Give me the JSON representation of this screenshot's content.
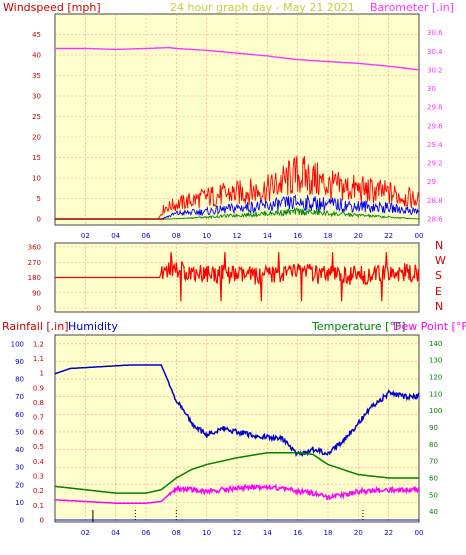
{
  "header": {
    "left": "Windspeed [mph]",
    "center": "24 hour graph day - May 21 2021",
    "right": "Barometer [.in]"
  },
  "bottom_header": {
    "rain": "Rainfall [.in]",
    "humidity": "Humidity",
    "temp": "Temperature [°F]",
    "dew": "Dew Point [°F]"
  },
  "directions": [
    "N",
    "W",
    "S",
    "E",
    "N"
  ],
  "colors": {
    "plot_bg": "#ffffcc",
    "grid": "#ff9999",
    "wind_gust": "#ff0000",
    "wind_avg": "#0000ff",
    "wind_lull": "#008800",
    "barometer": "#ff33ff",
    "direction": "#ff0000",
    "humidity": "#0000cc",
    "temperature": "#008000",
    "dewpoint": "#ff00ff",
    "rain": "#0000ff"
  },
  "chart_data": [
    {
      "type": "line",
      "name": "wind_barometer",
      "x_ticks": [
        "02",
        "04",
        "06",
        "08",
        "10",
        "12",
        "14",
        "16",
        "18",
        "20",
        "22",
        "00"
      ],
      "ylabel_left": "Windspeed [mph]",
      "ylabel_right": "Barometer [.in]",
      "yticks_left": [
        0,
        5,
        10,
        15,
        20,
        25,
        30,
        35,
        40,
        45
      ],
      "yticks_right": [
        28.6,
        28.8,
        29,
        29.2,
        29.4,
        29.6,
        29.8,
        30,
        30.2,
        30.4,
        30.6
      ],
      "ylim_left": [
        0,
        50
      ],
      "ylim_right": [
        28.6,
        30.8
      ],
      "series": [
        {
          "name": "Barometer",
          "axis": "right",
          "x": [
            0,
            2,
            4,
            6,
            7.5,
            8,
            10,
            12,
            14,
            16,
            18,
            20,
            22,
            24
          ],
          "values": [
            30.43,
            30.43,
            30.42,
            30.43,
            30.44,
            30.43,
            30.41,
            30.38,
            30.35,
            30.31,
            30.29,
            30.27,
            30.24,
            30.2
          ]
        },
        {
          "name": "Wind Gust",
          "axis": "left",
          "x": [
            0,
            6.8,
            7.2,
            8,
            10,
            12,
            14,
            16,
            17,
            18,
            20,
            22,
            24
          ],
          "values": [
            0,
            0,
            3,
            4,
            6,
            7,
            8,
            12,
            11,
            9,
            8,
            7,
            5
          ]
        },
        {
          "name": "Wind Average",
          "axis": "left",
          "x": [
            0,
            7,
            8,
            10,
            12,
            14,
            16,
            18,
            20,
            22,
            24
          ],
          "values": [
            0,
            0,
            1.5,
            2,
            3,
            3.5,
            4.5,
            4,
            3.5,
            3,
            2
          ]
        },
        {
          "name": "Wind Lull",
          "axis": "left",
          "x": [
            0,
            7.5,
            10,
            12,
            14,
            16,
            18,
            20,
            22,
            24
          ],
          "values": [
            0,
            0,
            0.5,
            1,
            1.5,
            2,
            1.5,
            1,
            0.5,
            0
          ]
        }
      ]
    },
    {
      "type": "line",
      "name": "wind_direction",
      "yticks_left": [
        0,
        90,
        180,
        270,
        360
      ],
      "ylim": [
        0,
        360
      ],
      "series": [
        {
          "name": "Direction",
          "x": [
            0,
            6.9,
            7.0,
            7.5,
            9,
            11,
            13,
            15,
            16,
            16.5,
            17,
            19,
            21,
            23,
            24
          ],
          "values": [
            180,
            180,
            210,
            240,
            210,
            200,
            190,
            200,
            220,
            230,
            195,
            190,
            195,
            210,
            200
          ]
        }
      ]
    },
    {
      "type": "line",
      "name": "temperature_humidity_rain",
      "ylabel_left_outer": "Rainfall [.in]",
      "ylabel_left_inner": "Humidity",
      "ylabel_right_a": "Temperature [°F]",
      "ylabel_right_b": "Dew Point [°F]",
      "yticks_rain": [
        0,
        0.1,
        0.2,
        0.3,
        0.4,
        0.5,
        0.6,
        0.7,
        0.8,
        0.9,
        1,
        1.1,
        1.2
      ],
      "yticks_humidity": [
        0,
        10,
        20,
        30,
        40,
        50,
        60,
        70,
        80,
        90,
        100
      ],
      "yticks_temp": [
        40,
        50,
        60,
        70,
        80,
        90,
        100,
        110,
        120,
        130,
        140
      ],
      "ylim_humidity": [
        0,
        105
      ],
      "ylim_temp": [
        35,
        145
      ],
      "series": [
        {
          "name": "Humidity",
          "axis": "humidity",
          "x": [
            0,
            1,
            3,
            5,
            6,
            7,
            8,
            9,
            10,
            11,
            12,
            13,
            14,
            15,
            16,
            17,
            18,
            19,
            20,
            21,
            22,
            23,
            24
          ],
          "values": [
            83,
            86,
            87,
            88,
            88,
            88,
            68,
            55,
            48,
            52,
            50,
            48,
            47,
            46,
            37,
            40,
            38,
            45,
            55,
            65,
            72,
            70,
            70
          ]
        },
        {
          "name": "Temperature",
          "axis": "temp",
          "x": [
            0,
            2,
            4,
            6,
            7,
            8,
            9,
            10,
            12,
            14,
            16,
            17,
            18,
            20,
            22,
            24
          ],
          "values": [
            55,
            53,
            51,
            51,
            53,
            60,
            65,
            68,
            72,
            75,
            75,
            74,
            68,
            62,
            60,
            60
          ]
        },
        {
          "name": "Dew Point",
          "axis": "temp",
          "x": [
            0,
            2,
            4,
            6,
            7,
            8,
            9,
            10,
            12,
            14,
            16,
            17,
            18,
            20,
            22,
            24
          ],
          "values": [
            47,
            46,
            45,
            45,
            46,
            54,
            53,
            52,
            54,
            55,
            52,
            51,
            48,
            52,
            53,
            53
          ]
        },
        {
          "name": "Rainfall",
          "axis": "rain",
          "x": [
            0,
            24
          ],
          "values": [
            0,
            0
          ]
        }
      ]
    }
  ]
}
